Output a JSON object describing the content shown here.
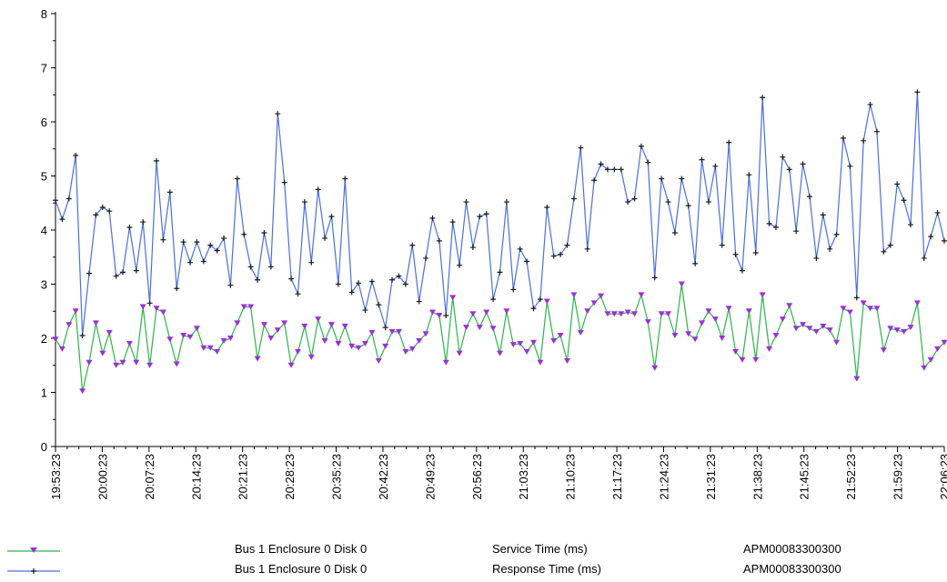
{
  "chart_data": {
    "type": "line",
    "ylim": [
      0,
      8
    ],
    "yticks": [
      "0",
      "1",
      "2",
      "3",
      "4",
      "5",
      "6",
      "7",
      "8"
    ],
    "xtick_labels": [
      "19:53:23",
      "20:00:23",
      "20:07:23",
      "20:14:23",
      "20:21:23",
      "20:28:23",
      "20:35:23",
      "20:42:23",
      "20:49:23",
      "20:56:23",
      "21:03:23",
      "21:10:23",
      "21:17:23",
      "21:24:23",
      "21:31:23",
      "21:38:23",
      "21:45:23",
      "21:52:23",
      "21:59:23",
      "22:06:23"
    ],
    "grid": false,
    "legend_position": "bottom",
    "series": [
      {
        "name": "Service Time (ms)",
        "object": "Bus 1 Enclosure 0 Disk 0",
        "storage": "APM00083300300",
        "color": "#2db34a",
        "marker_color": "#9b30d9",
        "marker": "triangle-down",
        "values": [
          1.98,
          1.8,
          2.25,
          2.5,
          1.02,
          1.55,
          2.28,
          1.72,
          2.1,
          1.5,
          1.55,
          1.9,
          1.55,
          2.58,
          1.5,
          2.55,
          2.48,
          1.98,
          1.52,
          2.05,
          2.02,
          2.18,
          1.82,
          1.82,
          1.75,
          1.95,
          2.0,
          2.28,
          2.58,
          2.58,
          1.62,
          2.25,
          2.0,
          2.15,
          2.28,
          1.5,
          1.75,
          2.22,
          1.65,
          2.35,
          1.95,
          2.25,
          1.9,
          2.22,
          1.85,
          1.82,
          1.9,
          2.1,
          1.58,
          1.85,
          2.12,
          2.12,
          1.75,
          1.8,
          1.95,
          2.08,
          2.48,
          2.42,
          1.55,
          2.75,
          1.72,
          2.2,
          2.45,
          2.2,
          2.48,
          2.18,
          1.72,
          2.5,
          1.88,
          1.9,
          1.75,
          1.92,
          1.55,
          2.68,
          1.95,
          2.05,
          1.58,
          2.8,
          2.1,
          2.5,
          2.65,
          2.78,
          2.45,
          2.45,
          2.45,
          2.48,
          2.45,
          2.8,
          2.3,
          1.45,
          2.45,
          2.45,
          2.05,
          3.0,
          2.08,
          1.98,
          2.28,
          2.5,
          2.35,
          2.0,
          2.55,
          1.75,
          1.6,
          2.5,
          1.6,
          2.8,
          1.8,
          2.05,
          2.35,
          2.6,
          2.18,
          2.25,
          2.18,
          2.12,
          2.22,
          2.15,
          1.92,
          2.55,
          2.48,
          1.25,
          2.65,
          2.55,
          2.55,
          1.78,
          2.18,
          2.15,
          2.12,
          2.2,
          2.65,
          1.45,
          1.6,
          1.8,
          1.92
        ]
      },
      {
        "name": "Response Time (ms)",
        "object": "Bus 1 Enclosure 0 Disk 0",
        "storage": "APM00083300300",
        "color": "#4a6fe0",
        "marker_color": "#1a1a1a",
        "marker": "plus",
        "values": [
          4.55,
          4.2,
          4.58,
          5.38,
          2.05,
          3.2,
          4.28,
          4.42,
          4.35,
          3.15,
          3.22,
          4.05,
          3.25,
          4.15,
          2.65,
          5.28,
          3.82,
          4.7,
          2.92,
          3.78,
          3.4,
          3.78,
          3.42,
          3.72,
          3.62,
          3.85,
          2.98,
          4.95,
          3.92,
          3.32,
          3.08,
          3.95,
          3.32,
          6.15,
          4.88,
          3.1,
          2.82,
          4.52,
          3.4,
          4.75,
          3.85,
          4.25,
          3.0,
          4.95,
          2.85,
          3.02,
          2.52,
          3.05,
          2.62,
          2.2,
          3.08,
          3.15,
          3.0,
          3.72,
          2.68,
          3.48,
          4.22,
          3.8,
          2.42,
          4.15,
          3.35,
          4.52,
          3.68,
          4.25,
          4.3,
          2.72,
          3.22,
          4.52,
          2.9,
          3.65,
          3.42,
          2.55,
          2.72,
          4.42,
          3.52,
          3.55,
          3.72,
          4.58,
          5.52,
          3.65,
          4.92,
          5.22,
          5.12,
          5.12,
          5.12,
          4.52,
          4.58,
          5.55,
          5.25,
          3.12,
          4.95,
          4.52,
          3.95,
          4.95,
          4.45,
          3.38,
          5.3,
          4.52,
          5.18,
          3.72,
          5.62,
          3.55,
          3.25,
          5.02,
          3.58,
          6.45,
          4.12,
          4.05,
          5.35,
          5.12,
          3.98,
          5.22,
          4.62,
          3.48,
          4.28,
          3.65,
          3.92,
          5.7,
          5.18,
          2.75,
          5.65,
          6.32,
          5.82,
          3.6,
          3.72,
          4.85,
          4.55,
          4.1,
          6.55,
          3.48,
          3.88,
          4.32,
          3.8
        ]
      }
    ]
  },
  "legend": [
    {
      "object": "Bus 1 Enclosure 0 Disk 0",
      "metric": "Service Time (ms)",
      "storage": "APM00083300300"
    },
    {
      "object": "Bus 1 Enclosure 0 Disk 0",
      "metric": "Response Time (ms)",
      "storage": "APM00083300300"
    }
  ]
}
